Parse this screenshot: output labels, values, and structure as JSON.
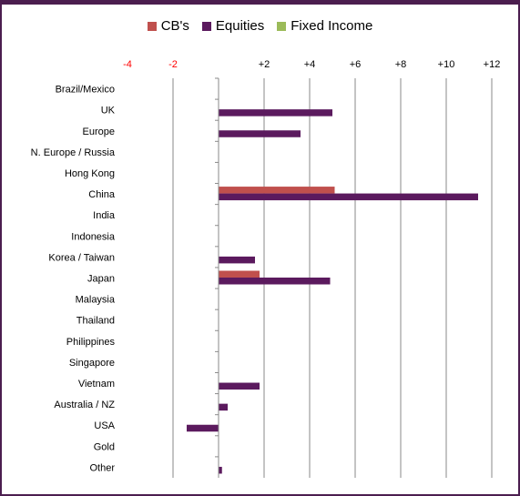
{
  "chart_data": {
    "type": "bar",
    "orientation": "horizontal",
    "categories": [
      "Brazil/Mexico",
      "UK",
      "Europe",
      "N. Europe / Russia",
      "Hong Kong",
      "China",
      "India",
      "Indonesia",
      "Korea / Taiwan",
      "Japan",
      "Malaysia",
      "Thailand",
      "Philippines",
      "Singapore",
      "Vietnam",
      "Australia / NZ",
      "USA",
      "Gold",
      "Other"
    ],
    "series": [
      {
        "name": "CB's",
        "color": "#c0504d",
        "values": [
          0,
          0,
          0,
          0,
          0,
          5.1,
          0,
          0,
          0,
          1.8,
          0,
          0,
          0,
          0,
          0,
          0,
          0,
          0,
          0
        ]
      },
      {
        "name": "Equities",
        "color": "#5b1a5e",
        "values": [
          0,
          5.0,
          3.6,
          0,
          0,
          11.4,
          0,
          0,
          1.6,
          4.9,
          0,
          0,
          0,
          0,
          1.8,
          0.4,
          -1.4,
          0,
          0.15
        ]
      },
      {
        "name": "Fixed Income",
        "color": "#9bbb59",
        "values": [
          0,
          0,
          0,
          0,
          0,
          0,
          0,
          0,
          0,
          0,
          0,
          0,
          0,
          0,
          0,
          0,
          0,
          0,
          0
        ]
      }
    ],
    "xlim": [
      -4,
      12
    ],
    "xticks": [
      "-4",
      "-2",
      "+2",
      "+4",
      "+6",
      "+8",
      "+10",
      "+12"
    ],
    "xtick_values": [
      -4,
      -2,
      2,
      4,
      6,
      8,
      10,
      12
    ],
    "negative_tick_color": "#ff0000",
    "grid": true,
    "legend_position": "top"
  }
}
